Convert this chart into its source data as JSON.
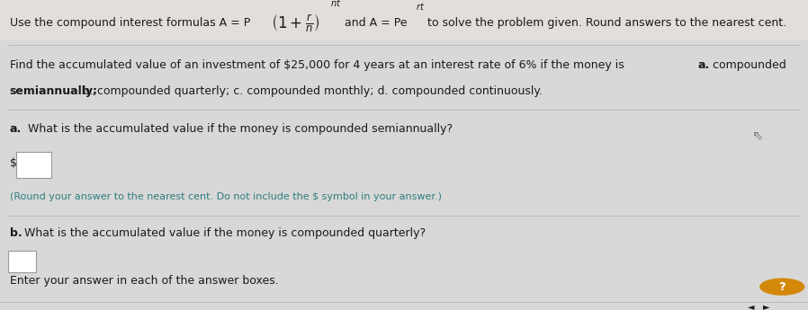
{
  "bg_color": "#d8d8d8",
  "content_bg": "#efede8",
  "text_color": "#1a1a1a",
  "teal_color": "#2e7d7d",
  "separator_color": "#bbbbbb",
  "input_box_color": "#ffffff",
  "input_box_border": "#999999",
  "arrow_color": "#555555",
  "question_mark_bg": "#d4880a",
  "line1_pre": "Use the compound interest formulas A = P",
  "line1_mid": "and A = Pe",
  "line1_post": "to solve the problem given. Round answers to the nearest cent.",
  "line2": "Find the accumulated value of an investment of $25,000 for 4 years at an interest rate of 6% if the money is",
  "line2_end_bold": "a.",
  "line2_end": " compounded",
  "line3": "semiannually;",
  "line3_rest": " b. compounded quarterly; c. compounded monthly; d. compounded continuously.",
  "qa_label": "a.",
  "qa_text": " What is the accumulated value if the money is compounded semiannually?",
  "dollar": "$",
  "round_note": "(Round your answer to the nearest cent. Do not include the $ symbol in your answer.)",
  "qb_label": "b.",
  "qb_text": "What is the accumulated value if the money is compounded quarterly?",
  "enter_text": "Enter your answer in each of the answer boxes.",
  "fs_main": 9.0,
  "fs_small": 8.0,
  "fs_tiny": 6.5
}
